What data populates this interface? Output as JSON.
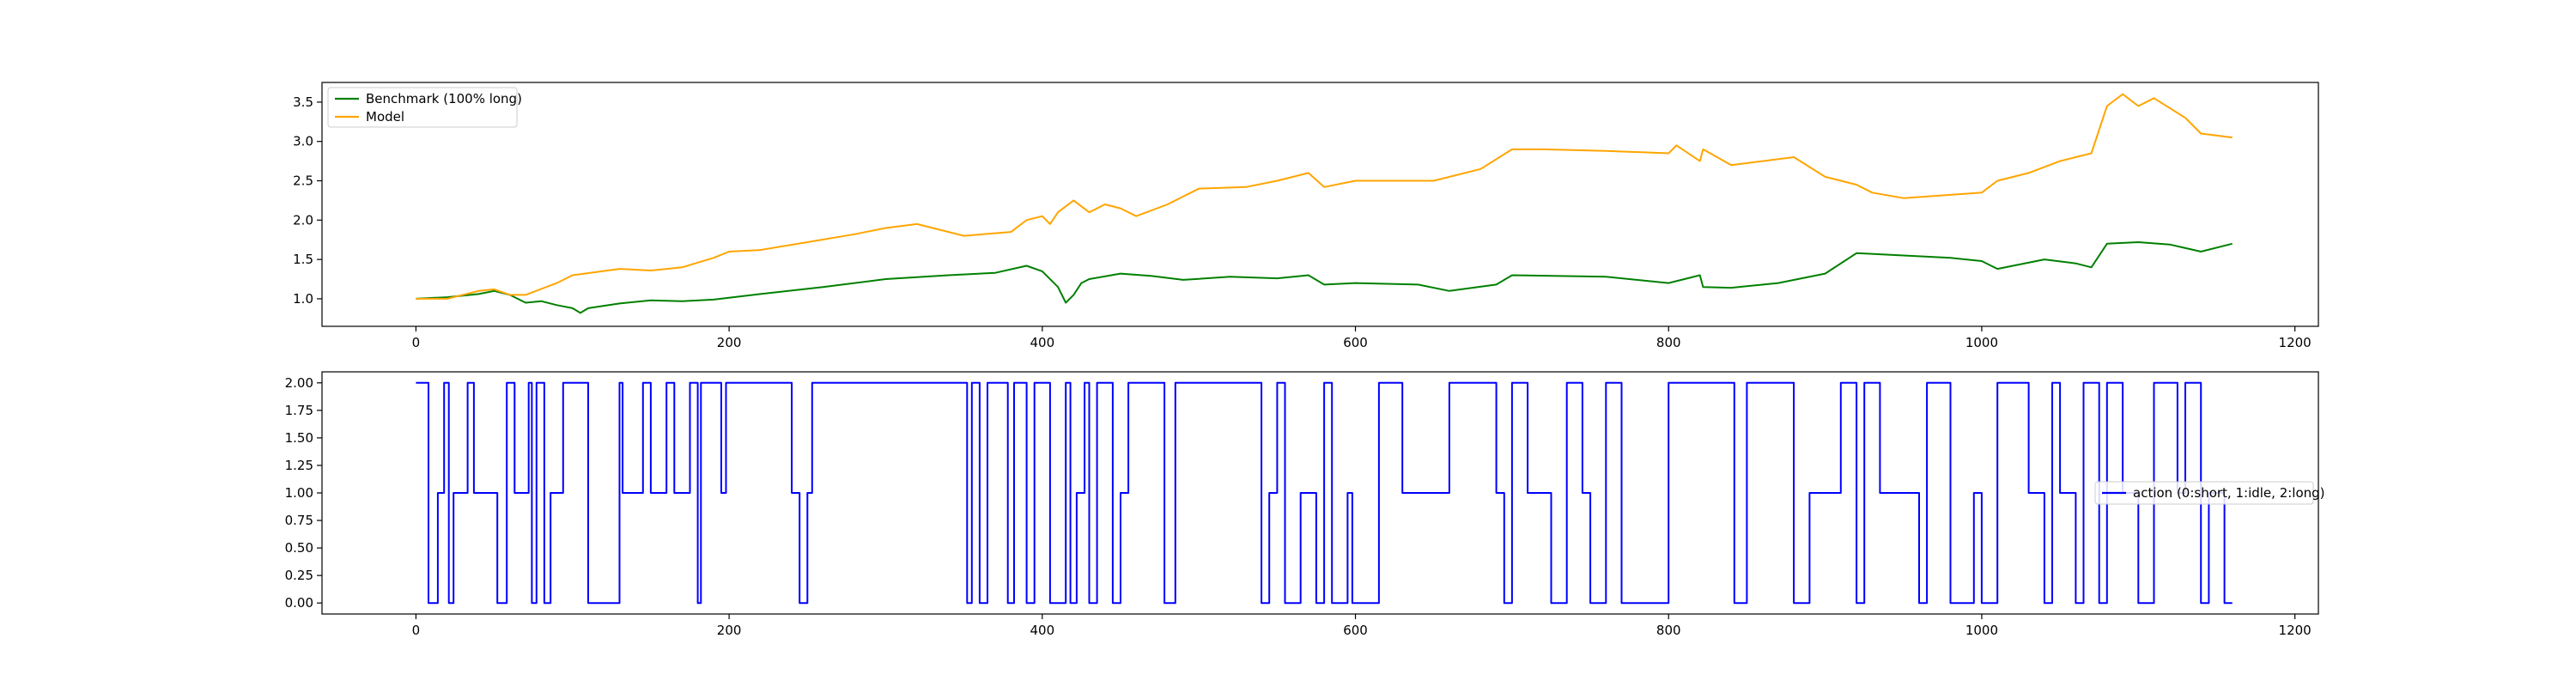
{
  "chart_data": [
    {
      "type": "line",
      "title": "",
      "xlabel": "",
      "ylabel": "",
      "xlim": [
        -60,
        1215
      ],
      "ylim": [
        0.65,
        3.75
      ],
      "xticks": [
        0,
        200,
        400,
        600,
        800,
        1000,
        1200
      ],
      "yticks": [
        1.0,
        1.5,
        2.0,
        2.5,
        3.0,
        3.5
      ],
      "xtick_labels": [
        "0",
        "200",
        "400",
        "600",
        "800",
        "1000",
        "1200"
      ],
      "ytick_labels": [
        "1.0",
        "1.5",
        "2.0",
        "2.5",
        "3.0",
        "3.5"
      ],
      "grid": false,
      "legend_position": "upper-left",
      "series": [
        {
          "name": "Benchmark (100% long)",
          "color": "#008000",
          "x": [
            0,
            20,
            40,
            50,
            60,
            70,
            80,
            90,
            100,
            105,
            110,
            130,
            150,
            170,
            190,
            220,
            260,
            300,
            340,
            370,
            390,
            400,
            410,
            415,
            420,
            425,
            430,
            450,
            470,
            490,
            520,
            550,
            570,
            580,
            600,
            640,
            660,
            690,
            700,
            760,
            800,
            820,
            822,
            840,
            870,
            900,
            920,
            950,
            980,
            1000,
            1010,
            1040,
            1060,
            1070,
            1080,
            1100,
            1120,
            1140,
            1160
          ],
          "y": [
            1.0,
            1.02,
            1.06,
            1.1,
            1.05,
            0.95,
            0.97,
            0.92,
            0.88,
            0.82,
            0.88,
            0.94,
            0.98,
            0.97,
            0.99,
            1.06,
            1.15,
            1.25,
            1.3,
            1.33,
            1.42,
            1.35,
            1.15,
            0.95,
            1.05,
            1.2,
            1.25,
            1.32,
            1.29,
            1.24,
            1.28,
            1.26,
            1.3,
            1.18,
            1.2,
            1.18,
            1.1,
            1.18,
            1.3,
            1.28,
            1.2,
            1.3,
            1.15,
            1.14,
            1.2,
            1.32,
            1.58,
            1.55,
            1.52,
            1.48,
            1.38,
            1.5,
            1.45,
            1.4,
            1.7,
            1.72,
            1.69,
            1.6,
            1.7
          ]
        },
        {
          "name": "Model",
          "color": "#FFA500",
          "x": [
            0,
            20,
            40,
            50,
            60,
            70,
            90,
            100,
            130,
            150,
            170,
            190,
            200,
            220,
            250,
            280,
            300,
            320,
            350,
            380,
            390,
            400,
            405,
            410,
            420,
            430,
            440,
            450,
            460,
            480,
            500,
            530,
            550,
            570,
            580,
            600,
            650,
            680,
            700,
            720,
            760,
            800,
            805,
            820,
            822,
            840,
            880,
            900,
            920,
            930,
            950,
            1000,
            1010,
            1030,
            1050,
            1060,
            1070,
            1080,
            1090,
            1100,
            1110,
            1130,
            1140,
            1160
          ],
          "y": [
            1.0,
            1.0,
            1.1,
            1.12,
            1.05,
            1.05,
            1.2,
            1.3,
            1.38,
            1.36,
            1.4,
            1.52,
            1.6,
            1.62,
            1.72,
            1.82,
            1.9,
            1.95,
            1.8,
            1.85,
            2.0,
            2.05,
            1.95,
            2.1,
            2.25,
            2.1,
            2.2,
            2.15,
            2.05,
            2.2,
            2.4,
            2.42,
            2.5,
            2.6,
            2.42,
            2.5,
            2.5,
            2.65,
            2.9,
            2.9,
            2.88,
            2.85,
            2.95,
            2.75,
            2.9,
            2.7,
            2.8,
            2.55,
            2.45,
            2.35,
            2.28,
            2.35,
            2.5,
            2.6,
            2.75,
            2.8,
            2.85,
            3.45,
            3.6,
            3.45,
            3.55,
            3.3,
            3.1,
            3.05
          ]
        }
      ]
    },
    {
      "type": "line",
      "title": "",
      "xlabel": "",
      "ylabel": "",
      "xlim": [
        -60,
        1215
      ],
      "ylim": [
        -0.1,
        2.1
      ],
      "xticks": [
        0,
        200,
        400,
        600,
        800,
        1000,
        1200
      ],
      "yticks": [
        0.0,
        0.25,
        0.5,
        0.75,
        1.0,
        1.25,
        1.5,
        1.75,
        2.0
      ],
      "xtick_labels": [
        "0",
        "200",
        "400",
        "600",
        "800",
        "1000",
        "1200"
      ],
      "ytick_labels": [
        "0.00",
        "0.25",
        "0.50",
        "0.75",
        "1.00",
        "1.25",
        "1.50",
        "1.75",
        "2.00"
      ],
      "grid": false,
      "legend_position": "center-right",
      "series": [
        {
          "name": "action (0:short, 1:idle, 2:long)",
          "color": "#0000FF",
          "x": [
            0,
            8,
            14,
            18,
            21,
            24,
            33,
            37,
            52,
            58,
            63,
            72,
            74,
            77,
            82,
            86,
            94,
            110,
            130,
            132,
            145,
            150,
            160,
            165,
            175,
            180,
            182,
            195,
            198,
            200,
            215,
            240,
            245,
            250,
            253,
            260,
            280,
            300,
            352,
            355,
            360,
            365,
            378,
            382,
            390,
            395,
            405,
            415,
            418,
            422,
            427,
            430,
            435,
            445,
            450,
            455,
            478,
            485,
            500,
            540,
            545,
            550,
            555,
            565,
            575,
            580,
            585,
            595,
            598,
            615,
            620,
            625,
            630,
            660,
            690,
            695,
            700,
            710,
            725,
            735,
            745,
            750,
            760,
            770,
            800,
            842,
            850,
            880,
            890,
            910,
            920,
            925,
            935,
            960,
            965,
            980,
            995,
            1000,
            1010,
            1030,
            1040,
            1045,
            1050,
            1060,
            1065,
            1075,
            1080,
            1090,
            1100,
            1110,
            1125,
            1130,
            1140,
            1145,
            1155,
            1160
          ],
          "y": [
            2,
            0,
            1,
            2,
            0,
            1,
            2,
            1,
            0,
            2,
            1,
            2,
            0,
            2,
            0,
            1,
            2,
            0,
            2,
            1,
            2,
            1,
            2,
            1,
            2,
            0,
            2,
            1,
            2,
            2,
            2,
            1,
            0,
            1,
            2,
            2,
            2,
            2,
            0,
            2,
            0,
            2,
            0,
            2,
            0,
            2,
            0,
            2,
            0,
            1,
            2,
            0,
            2,
            0,
            1,
            2,
            0,
            2,
            2,
            0,
            1,
            2,
            0,
            1,
            0,
            2,
            0,
            1,
            0,
            2,
            2,
            2,
            1,
            2,
            1,
            0,
            2,
            1,
            0,
            2,
            1,
            0,
            2,
            0,
            2,
            0,
            2,
            0,
            1,
            2,
            0,
            2,
            1,
            0,
            2,
            0,
            1,
            0,
            2,
            1,
            0,
            2,
            1,
            0,
            2,
            0,
            2,
            1,
            0,
            2,
            1,
            2,
            0,
            1,
            0,
            0
          ]
        }
      ]
    }
  ]
}
